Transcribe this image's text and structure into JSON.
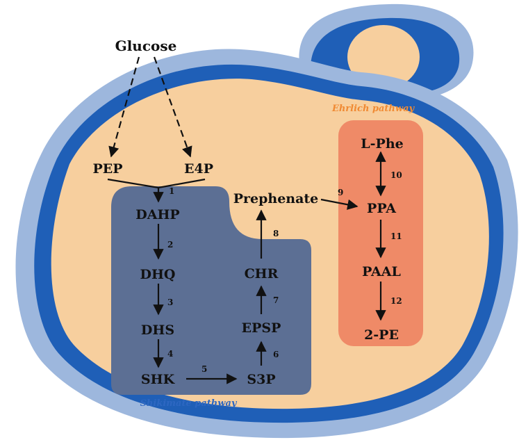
{
  "colors": {
    "cell_outer": "#9db7dd",
    "cell_band": "#1f5fb7",
    "cytoplasm": "#f7cf9e",
    "shikimate_box": "#5c6f94",
    "ehrlich_box": "#ef8a67",
    "ehrlich_label": "#f08a33",
    "shikimate_label": "#2d67c2"
  },
  "source": "Glucose",
  "nodes": {
    "pep": "PEP",
    "e4p": "E4P",
    "dahp": "DAHP",
    "dhq": "DHQ",
    "dhs": "DHS",
    "shk": "SHK",
    "s3p": "S3P",
    "epsp": "EPSP",
    "chr": "CHR",
    "prephenate": "Prephenate",
    "lphe": "L-Phe",
    "ppa": "PPA",
    "paal": "PAAL",
    "pe": "2-PE"
  },
  "steps": [
    "1",
    "2",
    "3",
    "4",
    "5",
    "6",
    "7",
    "8",
    "9",
    "10",
    "11",
    "12"
  ],
  "pathways": {
    "ehrlich": "Ehrlich pathway",
    "shikimate": "Shikimate pathway"
  }
}
